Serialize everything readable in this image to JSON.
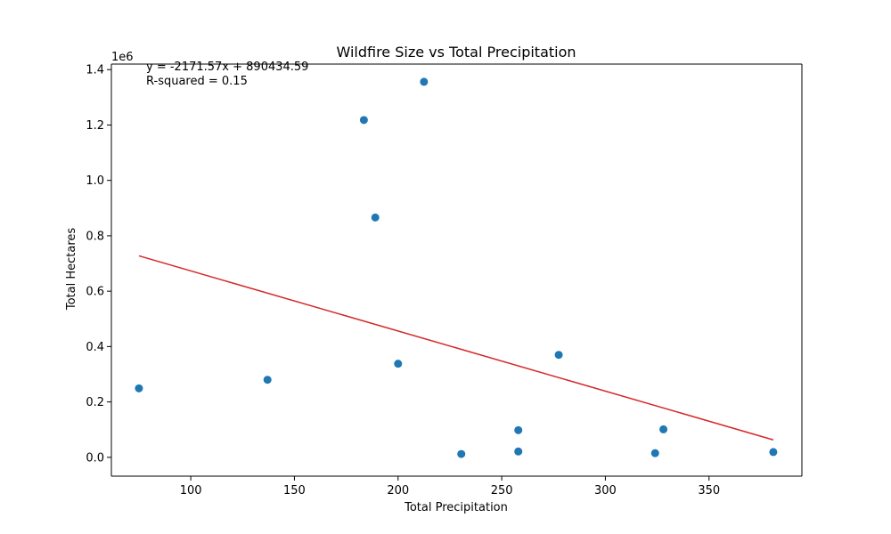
{
  "chart_data": {
    "type": "scatter",
    "title": "Wildfire Size vs Total Precipitation",
    "xlabel": "Total Precipitation",
    "ylabel": "Total Hectares",
    "y_scale_label": "1e6",
    "xlim": [
      61.7,
      394.8
    ],
    "ylim": [
      -0.068,
      1.42
    ],
    "y_multiplier": 1000000,
    "xticks": [
      100,
      150,
      200,
      250,
      300,
      350
    ],
    "yticks": [
      0.0,
      0.2,
      0.4,
      0.6,
      0.8,
      1.0,
      1.2,
      1.4
    ],
    "ytick_labels": [
      "0.0",
      "0.2",
      "0.4",
      "0.6",
      "0.8",
      "1.0",
      "1.2",
      "1.4"
    ],
    "series": [
      {
        "type": "scatter",
        "color": "#1f77b4",
        "points": [
          {
            "x": 75.0,
            "y": 0.249
          },
          {
            "x": 137.0,
            "y": 0.28
          },
          {
            "x": 183.5,
            "y": 1.218
          },
          {
            "x": 189.0,
            "y": 0.866
          },
          {
            "x": 200.0,
            "y": 0.338
          },
          {
            "x": 212.5,
            "y": 1.356
          },
          {
            "x": 230.5,
            "y": 0.012
          },
          {
            "x": 258.0,
            "y": 0.098
          },
          {
            "x": 258.0,
            "y": 0.021
          },
          {
            "x": 277.5,
            "y": 0.37
          },
          {
            "x": 324.0,
            "y": 0.015
          },
          {
            "x": 328.0,
            "y": 0.101
          },
          {
            "x": 381.0,
            "y": 0.019
          }
        ]
      },
      {
        "type": "line",
        "color": "#d62728",
        "slope": -2171.57,
        "intercept": 890434.59,
        "x_range": [
          75.0,
          381.0
        ]
      }
    ],
    "annotations": [
      "y = -2171.57x + 890434.59",
      "R-squared = 0.15"
    ],
    "grid": false
  }
}
